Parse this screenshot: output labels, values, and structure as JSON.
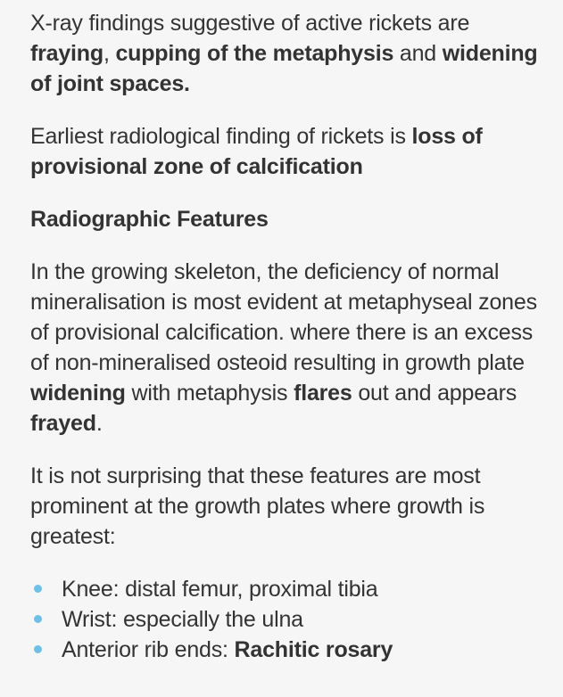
{
  "para1": {
    "text1": "X-ray findings suggestive of active rickets are ",
    "bold1": "fraying",
    "text2": ", ",
    "bold2": "cupping of the metaphysis",
    "text3": " and ",
    "bold3": "widening of joint spaces."
  },
  "para2": {
    "text1": "Earliest radiological finding of rickets is ",
    "bold1": "loss of provisional zone of calcification"
  },
  "heading": "Radiographic Features",
  "para3": {
    "text1": "In the growing skeleton, the deficiency of normal mineralisation is most evident at metaphyseal zones of provisional calcification. where there is an excess of non-mineralised osteoid resulting in growth plate ",
    "bold1": "widening",
    "text2": " with metaphysis ",
    "bold2": "flares",
    "text3": " out and appears ",
    "bold3": "frayed",
    "text4": "."
  },
  "para4": "It is not surprising that these features are most prominent at the growth plates where growth is greatest:",
  "list": [
    {
      "text": "Knee: distal femur, proximal tibia"
    },
    {
      "text": "Wrist: especially the ulna"
    },
    {
      "text": "Anterior rib ends: ",
      "bold": "Rachitic rosary"
    }
  ],
  "colors": {
    "text": "#333333",
    "bullet": "#6fc0e6",
    "background": "#f6f6f6"
  }
}
